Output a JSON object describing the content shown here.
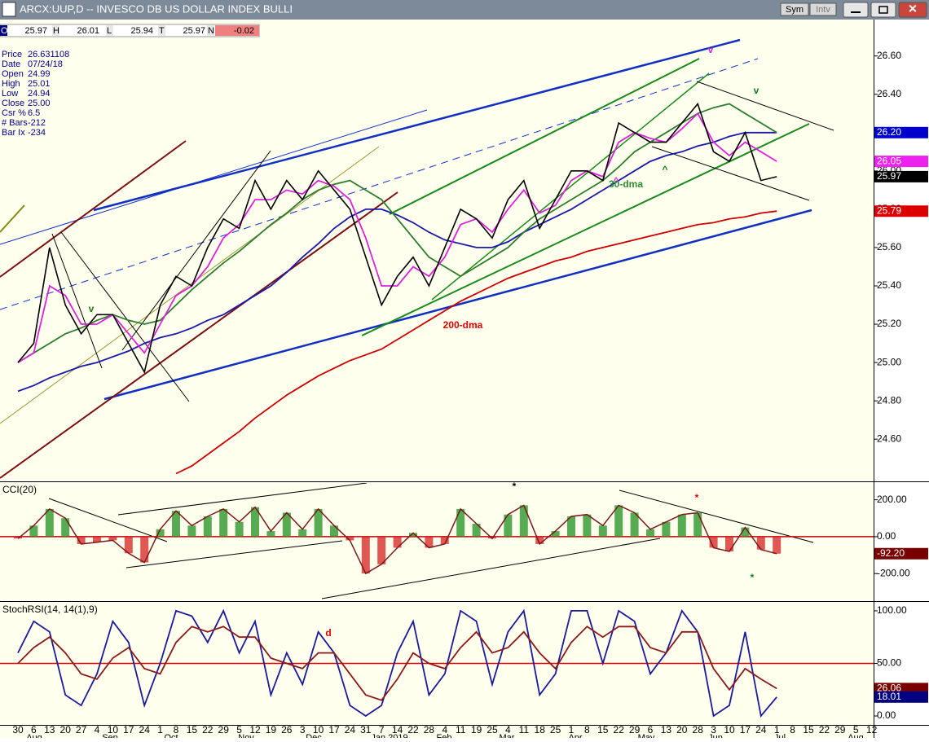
{
  "window": {
    "title": "ARCX:UUP,D -- INVESCO DB US DOLLAR INDEX BULLI",
    "buttons": [
      "Sym",
      "Intv"
    ]
  },
  "quote": [
    {
      "label": "O",
      "value": 25.97
    },
    {
      "label": "H",
      "value": 26.01
    },
    {
      "label": "L",
      "value": 25.94
    },
    {
      "label": "T",
      "value": 25.97
    },
    {
      "label": "N",
      "value": -0.02
    }
  ],
  "info": [
    [
      "Price",
      "26.631108"
    ],
    [
      "Date",
      "07/24/18"
    ],
    [
      "Open",
      "24.99"
    ],
    [
      "High",
      "25.01"
    ],
    [
      "Low",
      "24.94"
    ],
    [
      "Close",
      "25.00"
    ],
    [
      "Csr %",
      "6.5"
    ],
    [
      "# Bars",
      "-212"
    ],
    [
      "Bar Ix",
      "-234"
    ]
  ],
  "chart_data": [
    {
      "type": "line",
      "ylim": [
        24.384,
        26.79
      ],
      "yticks": [
        {
          "value": 24.6,
          "label": "24.60"
        },
        {
          "value": 24.8,
          "label": "24.80"
        },
        {
          "value": 25.0,
          "label": "25.00"
        },
        {
          "value": 25.2,
          "label": "25.20"
        },
        {
          "value": 25.4,
          "label": "25.40"
        },
        {
          "value": 25.6,
          "label": "25.60"
        },
        {
          "value": 25.8,
          "label": "25.80"
        },
        {
          "value": 26.0,
          "label": "26.00"
        },
        {
          "value": 26.2,
          "label": "26.20"
        },
        {
          "value": 26.4,
          "label": "26.40"
        },
        {
          "value": 26.6,
          "label": "26.60"
        }
      ],
      "series": [
        {
          "color": "#cc0000",
          "values": [
            null,
            null,
            null,
            null,
            null,
            null,
            null,
            null,
            null,
            null,
            24.42,
            24.46,
            24.52,
            24.58,
            24.64,
            24.71,
            24.77,
            24.83,
            24.88,
            24.93,
            24.97,
            25.01,
            25.04,
            25.07,
            25.12,
            25.17,
            25.22,
            25.27,
            25.32,
            25.36,
            25.4,
            25.44,
            25.47,
            25.5,
            25.53,
            25.55,
            25.58,
            25.6,
            25.62,
            25.64,
            25.66,
            25.68,
            25.7,
            25.72,
            25.73,
            25.75,
            25.76,
            25.78,
            25.79,
            null,
            null,
            null,
            null,
            null,
            null
          ]
        },
        {
          "color": "#1a1aa8",
          "values": [
            24.85,
            24.88,
            24.92,
            24.95,
            24.98,
            25.0,
            25.03,
            25.06,
            25.1,
            25.13,
            25.15,
            25.18,
            25.22,
            25.25,
            25.3,
            25.35,
            25.4,
            25.47,
            25.55,
            25.62,
            25.7,
            25.76,
            25.8,
            25.8,
            25.77,
            25.73,
            25.68,
            25.64,
            25.62,
            25.6,
            25.6,
            25.63,
            25.68,
            25.72,
            25.76,
            25.8,
            25.85,
            25.9,
            25.95,
            26.0,
            26.05,
            26.08,
            26.1,
            26.13,
            26.15,
            26.18,
            26.2,
            26.2,
            26.2,
            null,
            null,
            null,
            null,
            null,
            null
          ]
        },
        {
          "color": "#2e7d2e",
          "values": [
            25.0,
            25.05,
            25.1,
            25.15,
            25.18,
            25.22,
            25.25,
            25.22,
            25.2,
            25.22,
            25.3,
            25.38,
            25.45,
            25.52,
            25.58,
            25.65,
            25.72,
            25.78,
            25.85,
            25.9,
            25.93,
            25.95,
            25.9,
            25.85,
            25.75,
            25.65,
            25.55,
            25.5,
            25.45,
            25.5,
            25.55,
            25.6,
            25.68,
            25.75,
            25.8,
            25.85,
            25.9,
            25.95,
            26.02,
            26.1,
            26.15,
            26.2,
            26.25,
            26.3,
            26.33,
            26.35,
            26.3,
            26.25,
            26.2,
            null,
            null,
            null,
            null,
            null,
            null
          ]
        },
        {
          "color": "#dd22dd",
          "values": [
            25.0,
            25.05,
            25.4,
            25.35,
            25.2,
            25.2,
            25.25,
            25.15,
            25.05,
            25.2,
            25.35,
            25.4,
            25.5,
            25.65,
            25.72,
            25.85,
            25.85,
            25.9,
            25.88,
            25.95,
            25.92,
            25.85,
            25.65,
            25.4,
            25.4,
            25.5,
            25.45,
            25.55,
            25.72,
            25.75,
            25.68,
            25.8,
            25.9,
            25.78,
            25.82,
            25.95,
            26.0,
            25.97,
            26.15,
            26.2,
            26.17,
            26.15,
            26.22,
            26.3,
            26.15,
            26.08,
            26.15,
            26.1,
            26.05,
            null,
            null,
            null,
            null,
            null,
            null
          ]
        },
        {
          "color": "#000000",
          "values": [
            25.0,
            25.1,
            25.6,
            25.3,
            25.15,
            25.25,
            25.25,
            25.1,
            24.95,
            25.3,
            25.45,
            25.4,
            25.6,
            25.75,
            25.7,
            25.95,
            25.8,
            25.95,
            25.85,
            26.0,
            25.9,
            25.8,
            25.55,
            25.3,
            25.45,
            25.55,
            25.4,
            25.6,
            25.8,
            25.75,
            25.65,
            25.85,
            25.95,
            25.7,
            25.85,
            26.0,
            26.0,
            25.95,
            26.25,
            26.2,
            26.15,
            26.15,
            26.25,
            26.35,
            26.1,
            26.05,
            26.2,
            25.95,
            25.97,
            null,
            null,
            null,
            null,
            null,
            null
          ]
        }
      ],
      "last_labels": [
        {
          "value": 26.2,
          "label": "26.20",
          "color": "#0000cc"
        },
        {
          "value": 26.05,
          "label": "26.05",
          "color": "#ee22ee"
        },
        {
          "value": 25.97,
          "label": "25.97",
          "color": "#000000"
        },
        {
          "value": 25.79,
          "label": "25.79",
          "color": "#dd0000"
        }
      ],
      "annotations": [
        "30-dma",
        "200-dma",
        "v",
        "v",
        "v",
        "^",
        "^"
      ]
    },
    {
      "type": "bar",
      "title": "CCI(20)",
      "ylim": [
        -345,
        291
      ],
      "yticks": [
        {
          "value": -200,
          "label": "-200.00"
        },
        {
          "value": 0,
          "label": "0.00"
        },
        {
          "value": 200,
          "label": "200.00"
        }
      ],
      "reference_line": {
        "value": 0,
        "color": "#cc0000"
      },
      "positive_color": "#1f8f1f",
      "negative_color": "#d42020",
      "series": [
        {
          "color": "#7a1a1a",
          "values": [
            -10,
            60,
            150,
            100,
            -40,
            -30,
            -20,
            -90,
            -140,
            40,
            140,
            60,
            110,
            150,
            80,
            160,
            30,
            130,
            40,
            150,
            60,
            -20,
            -200,
            -150,
            -60,
            20,
            -60,
            -40,
            150,
            70,
            -10,
            120,
            170,
            -40,
            30,
            110,
            120,
            60,
            170,
            130,
            40,
            80,
            120,
            130,
            -60,
            -80,
            50,
            -70,
            -92.2,
            null,
            null,
            null,
            null,
            null,
            null
          ]
        }
      ],
      "last_labels": [
        {
          "value": -92.2,
          "label": "-92.20",
          "color": "#7a0000"
        }
      ],
      "annotations": [
        "*",
        "*",
        "*"
      ]
    },
    {
      "type": "line",
      "title": "StochRSI(14, 14(1),9)",
      "ylim": [
        -8.5,
        107.7
      ],
      "yticks": [
        {
          "value": 0,
          "label": "0.00"
        },
        {
          "value": 50,
          "label": "50.00"
        },
        {
          "value": 100,
          "label": "100.00"
        }
      ],
      "reference_line": {
        "value": 50,
        "color": "#dd0000"
      },
      "series": [
        {
          "color": "#1a1a9a",
          "values": [
            60,
            90,
            80,
            20,
            10,
            40,
            90,
            70,
            10,
            50,
            100,
            95,
            70,
            100,
            60,
            90,
            20,
            60,
            30,
            80,
            60,
            10,
            0,
            10,
            60,
            90,
            20,
            40,
            100,
            90,
            30,
            80,
            100,
            20,
            40,
            100,
            100,
            50,
            100,
            90,
            40,
            60,
            100,
            80,
            0,
            10,
            80,
            0,
            18.01,
            null,
            null,
            null,
            null,
            null,
            null
          ]
        },
        {
          "color": "#8b1a1a",
          "values": [
            50,
            65,
            75,
            60,
            40,
            35,
            55,
            65,
            45,
            40,
            70,
            85,
            80,
            85,
            75,
            75,
            55,
            50,
            45,
            60,
            60,
            40,
            20,
            15,
            35,
            60,
            50,
            45,
            65,
            80,
            60,
            65,
            80,
            60,
            45,
            70,
            85,
            75,
            85,
            85,
            65,
            60,
            80,
            80,
            45,
            25,
            45,
            35,
            26.06,
            null,
            null,
            null,
            null,
            null,
            null
          ]
        }
      ],
      "last_labels": [
        {
          "value": 26.06,
          "label": "26.06",
          "color": "#7a0000"
        },
        {
          "value": 18.01,
          "label": "18.01",
          "color": "#000080"
        }
      ],
      "annotations": [
        "d"
      ],
      "categories": [
        "30",
        "6",
        "13",
        "20",
        "27",
        "4",
        "10",
        "17",
        "24",
        "1",
        "8",
        "15",
        "22",
        "29",
        "5",
        "12",
        "19",
        "26",
        "3",
        "10",
        "17",
        "24",
        "31",
        "7",
        "14",
        "22",
        "28",
        "4",
        "11",
        "19",
        "25",
        "4",
        "11",
        "18",
        "25",
        "1",
        "8",
        "15",
        "22",
        "29",
        "6",
        "13",
        "20",
        "28",
        "3",
        "10",
        "17",
        "24",
        "1",
        "8",
        "15",
        "22",
        "29",
        "5",
        "12"
      ],
      "months": [
        "Aug",
        "Sep",
        "Oct",
        "Nov",
        "Dec",
        "Jan 2019",
        "Feb",
        "Mar",
        "Apr",
        "May",
        "Jun",
        "Jul",
        "Aug"
      ]
    }
  ]
}
